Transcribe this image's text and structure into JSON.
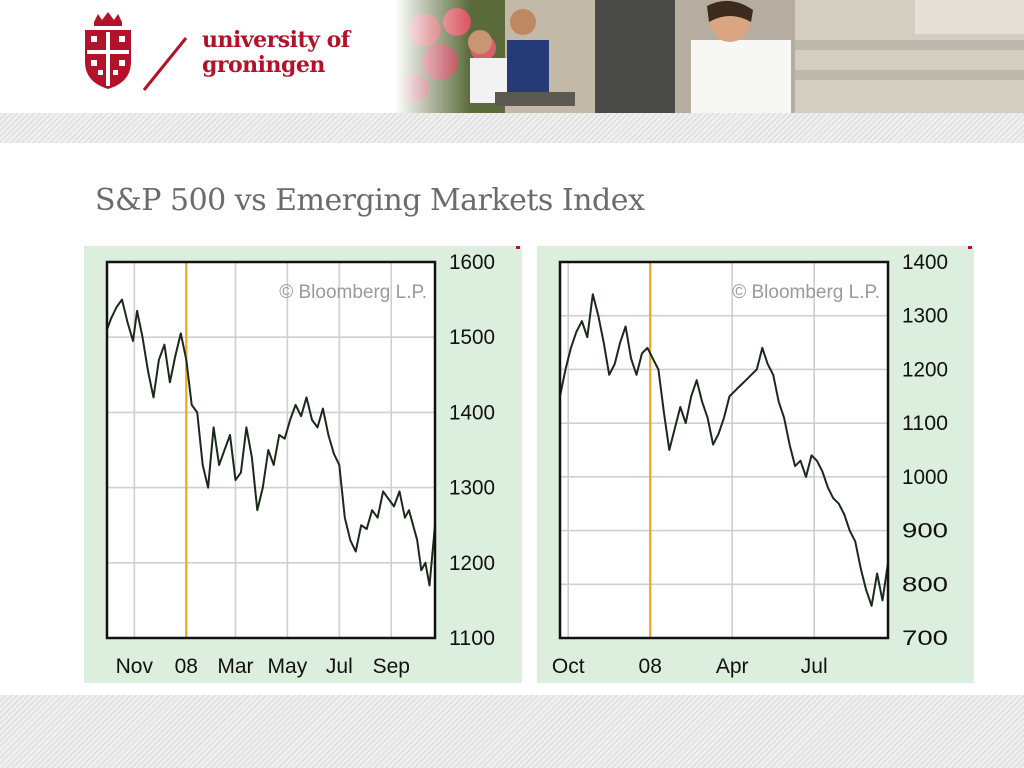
{
  "header": {
    "logo_line1": "university of",
    "logo_line2": "groningen"
  },
  "slide": {
    "title": "S&P 500 vs Emerging Markets Index"
  },
  "colors": {
    "brand": "#b3122a",
    "panel_bg": "#dceedd",
    "series": "#1a2a1a",
    "marker": "#f0a820",
    "grid": "#cfcfcf"
  },
  "chart_data": [
    {
      "type": "line",
      "title": "",
      "xlabel": "",
      "ylabel": "",
      "watermark": "© Bloomberg L.P.",
      "ylim": [
        1100,
        1600
      ],
      "yticks": [
        1100,
        1200,
        1300,
        1400,
        1500,
        1600
      ],
      "xlim": [
        0,
        12
      ],
      "xtick_labels": [
        {
          "x": 1,
          "label": "Nov"
        },
        {
          "x": 2.9,
          "label": "08"
        },
        {
          "x": 4.7,
          "label": "Mar"
        },
        {
          "x": 6.6,
          "label": "May"
        },
        {
          "x": 8.5,
          "label": "Jul"
        },
        {
          "x": 10.4,
          "label": "Sep"
        }
      ],
      "marker_x": 2.9,
      "grid": true,
      "series": [
        {
          "x": [
            0,
            0.15,
            0.35,
            0.55,
            0.75,
            0.95,
            1.1,
            1.3,
            1.5,
            1.7,
            1.9,
            2.1,
            2.3,
            2.5,
            2.7,
            2.9,
            3.1,
            3.3,
            3.5,
            3.7,
            3.9,
            4.1,
            4.3,
            4.5,
            4.7,
            4.9,
            5.1,
            5.3,
            5.5,
            5.7,
            5.9,
            6.1,
            6.3,
            6.5,
            6.7,
            6.9,
            7.1,
            7.3,
            7.5,
            7.7,
            7.9,
            8.1,
            8.3,
            8.5,
            8.7,
            8.9,
            9.1,
            9.3,
            9.5,
            9.7,
            9.9,
            10.1,
            10.3,
            10.5,
            10.7,
            10.9,
            11.05,
            11.2,
            11.35,
            11.5,
            11.65,
            11.8,
            12
          ],
          "values": [
            1510,
            1525,
            1540,
            1550,
            1520,
            1495,
            1535,
            1500,
            1455,
            1420,
            1470,
            1490,
            1440,
            1475,
            1505,
            1470,
            1410,
            1400,
            1330,
            1300,
            1380,
            1330,
            1350,
            1370,
            1310,
            1320,
            1380,
            1340,
            1270,
            1300,
            1350,
            1330,
            1370,
            1365,
            1390,
            1410,
            1395,
            1420,
            1390,
            1380,
            1405,
            1370,
            1345,
            1330,
            1260,
            1230,
            1215,
            1250,
            1245,
            1270,
            1260,
            1295,
            1285,
            1275,
            1295,
            1260,
            1270,
            1250,
            1230,
            1190,
            1200,
            1170,
            1250
          ]
        }
      ]
    },
    {
      "type": "line",
      "title": "",
      "xlabel": "",
      "ylabel": "",
      "watermark": "© Bloomberg L.P.",
      "ylim": [
        700,
        1400
      ],
      "yticks": [
        700,
        800,
        900,
        1000,
        1100,
        1200,
        1300,
        1400
      ],
      "xlim": [
        0,
        12
      ],
      "xtick_labels": [
        {
          "x": 0.3,
          "label": "Oct"
        },
        {
          "x": 3.3,
          "label": "08"
        },
        {
          "x": 6.3,
          "label": "Apr"
        },
        {
          "x": 9.3,
          "label": "Jul"
        }
      ],
      "marker_x": 3.3,
      "grid": true,
      "series": [
        {
          "x": [
            0,
            0.2,
            0.4,
            0.6,
            0.8,
            1.0,
            1.2,
            1.4,
            1.6,
            1.8,
            2.0,
            2.2,
            2.4,
            2.6,
            2.8,
            3.0,
            3.2,
            3.4,
            3.6,
            3.8,
            4.0,
            4.2,
            4.4,
            4.6,
            4.8,
            5.0,
            5.2,
            5.4,
            5.6,
            5.8,
            6.0,
            6.2,
            6.4,
            6.6,
            6.8,
            7.0,
            7.2,
            7.4,
            7.6,
            7.8,
            8.0,
            8.2,
            8.4,
            8.6,
            8.8,
            9.0,
            9.2,
            9.4,
            9.6,
            9.8,
            10.0,
            10.2,
            10.4,
            10.6,
            10.8,
            11.0,
            11.2,
            11.4,
            11.6,
            11.8,
            12
          ],
          "values": [
            1150,
            1200,
            1240,
            1270,
            1290,
            1260,
            1340,
            1300,
            1250,
            1190,
            1210,
            1250,
            1280,
            1220,
            1190,
            1230,
            1240,
            1220,
            1200,
            1120,
            1050,
            1090,
            1130,
            1100,
            1150,
            1180,
            1140,
            1110,
            1060,
            1080,
            1110,
            1150,
            1160,
            1170,
            1180,
            1190,
            1200,
            1240,
            1210,
            1190,
            1140,
            1110,
            1060,
            1020,
            1030,
            1000,
            1040,
            1030,
            1010,
            980,
            960,
            950,
            930,
            900,
            880,
            830,
            790,
            760,
            820,
            770,
            840
          ]
        }
      ]
    }
  ]
}
